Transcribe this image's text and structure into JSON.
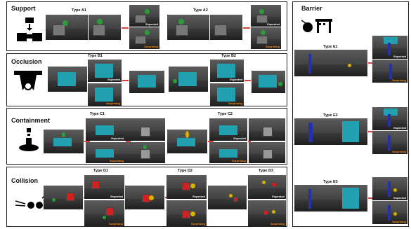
{
  "support": {
    "title": "Support",
    "types": [
      "Type A1",
      "Type A2"
    ]
  },
  "occlusion": {
    "title": "Occlusion",
    "types": [
      "Type B1",
      "Type B2"
    ]
  },
  "containment": {
    "title": "Containment",
    "types": [
      "Type C1",
      "Type C2"
    ]
  },
  "collision": {
    "title": "Collision",
    "types": [
      "Type D1",
      "Type D2",
      "Type D3"
    ]
  },
  "barrier": {
    "title": "Barrier",
    "types": [
      "Type E1",
      "Type E2",
      "Type E3"
    ]
  },
  "labels": {
    "expected": "Expected",
    "surprising": "Surprising"
  },
  "colors": {
    "wall": "#22a0b0",
    "arrow": "#e04040",
    "surprising": "#ff8c1a"
  }
}
